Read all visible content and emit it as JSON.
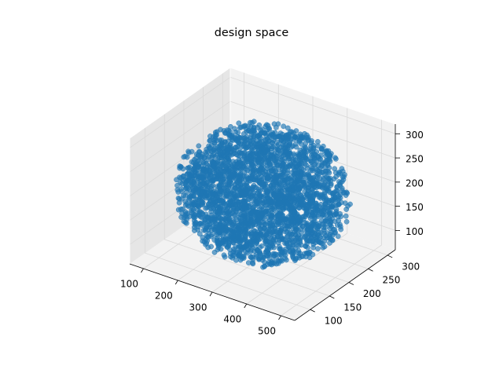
{
  "chart_data": {
    "type": "scatter3d",
    "title": "design space",
    "xlabel": "",
    "ylabel": "",
    "zlabel": "",
    "xlim": [
      60,
      540
    ],
    "ylim": [
      60,
      320
    ],
    "zlim": [
      60,
      320
    ],
    "xticks": [
      "100",
      "200",
      "300",
      "400",
      "500"
    ],
    "yticks": [
      "100",
      "150",
      "200",
      "250",
      "300"
    ],
    "zticks": [
      "100",
      "150",
      "200",
      "250",
      "300"
    ],
    "grid": true,
    "series": [
      {
        "color": "#1f77b4",
        "point_count": 3000,
        "distribution": "dense ellipsoidal cloud",
        "x_range": [
          80,
          520
        ],
        "y_range": [
          70,
          310
        ],
        "z_range": [
          60,
          310
        ],
        "center": [
          300,
          190,
          190
        ]
      }
    ]
  },
  "colors": {
    "points": "#1f77b4",
    "pane_light": "#f2f2f2",
    "pane_dark": "#e6e6e6",
    "grid": "#d9d9d9"
  }
}
